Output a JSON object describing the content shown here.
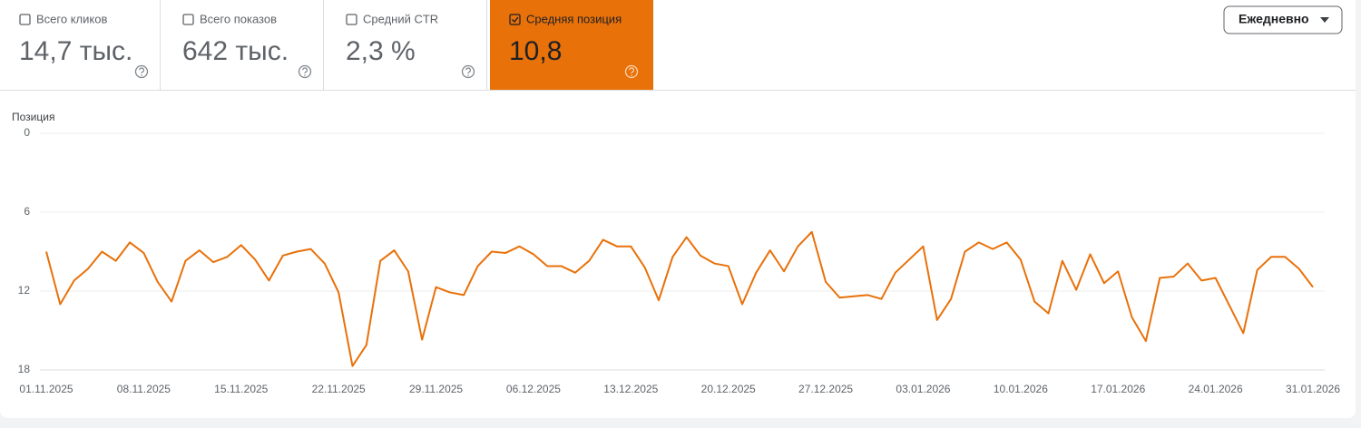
{
  "cards": [
    {
      "label": "Всего кликов",
      "value": "14,7 тыс.",
      "checked": false
    },
    {
      "label": "Всего показов",
      "value": "642 тыс.",
      "checked": false
    },
    {
      "label": "Средний CTR",
      "value": "2,3 %",
      "checked": false
    },
    {
      "label": "Средняя позиция",
      "value": "10,8",
      "checked": true,
      "color": "#e8710a"
    }
  ],
  "dropdown": "Ежедневно",
  "chart_data": {
    "type": "line",
    "y_label": "Позиция",
    "categories": [
      "01.11.2025",
      null,
      null,
      null,
      null,
      null,
      null,
      "08.11.2025",
      null,
      null,
      null,
      null,
      null,
      null,
      "15.11.2025",
      null,
      null,
      null,
      null,
      null,
      null,
      "22.11.2025",
      null,
      null,
      null,
      null,
      null,
      null,
      "29.11.2025",
      null,
      null,
      null,
      null,
      null,
      null,
      "06.12.2025",
      null,
      null,
      null,
      null,
      null,
      null,
      "13.12.2025",
      null,
      null,
      null,
      null,
      null,
      null,
      "20.12.2025",
      null,
      null,
      null,
      null,
      null,
      null,
      "27.12.2025",
      null,
      null,
      null,
      null,
      null,
      null,
      "03.01.2026",
      null,
      null,
      null,
      null,
      null,
      null,
      "10.01.2026",
      null,
      null,
      null,
      null,
      null,
      null,
      "17.01.2026",
      null,
      null,
      null,
      null,
      null,
      null,
      "24.01.2026",
      null,
      null,
      null,
      null,
      null,
      null,
      "31.01.2026"
    ],
    "values": [
      9.0,
      13.0,
      11.2,
      10.3,
      9.0,
      9.7,
      8.3,
      9.1,
      11.3,
      12.8,
      9.7,
      8.9,
      9.8,
      9.4,
      8.5,
      9.6,
      11.2,
      9.3,
      9.0,
      8.8,
      9.9,
      12.1,
      17.7,
      16.1,
      9.7,
      8.9,
      10.5,
      15.7,
      11.7,
      12.1,
      12.3,
      10.1,
      9.0,
      9.1,
      8.6,
      9.2,
      10.1,
      10.1,
      10.6,
      9.7,
      8.1,
      8.6,
      8.6,
      10.2,
      12.7,
      9.4,
      7.9,
      9.3,
      9.9,
      10.1,
      13.0,
      10.6,
      8.9,
      10.5,
      8.6,
      7.5,
      11.3,
      12.5,
      12.4,
      12.3,
      12.6,
      10.6,
      9.6,
      8.6,
      14.2,
      12.6,
      9.0,
      8.3,
      8.8,
      8.3,
      9.6,
      12.8,
      13.7,
      9.7,
      11.9,
      9.2,
      11.4,
      10.5,
      14.0,
      15.8,
      11.0,
      10.9,
      9.9,
      11.2,
      11.0,
      13.1,
      15.2,
      10.4,
      9.4,
      9.4,
      10.3,
      11.7
    ],
    "color": "#e8710a",
    "ylim": [
      18,
      0
    ],
    "yticks": [
      0,
      6,
      12,
      18
    ],
    "grid": true
  }
}
